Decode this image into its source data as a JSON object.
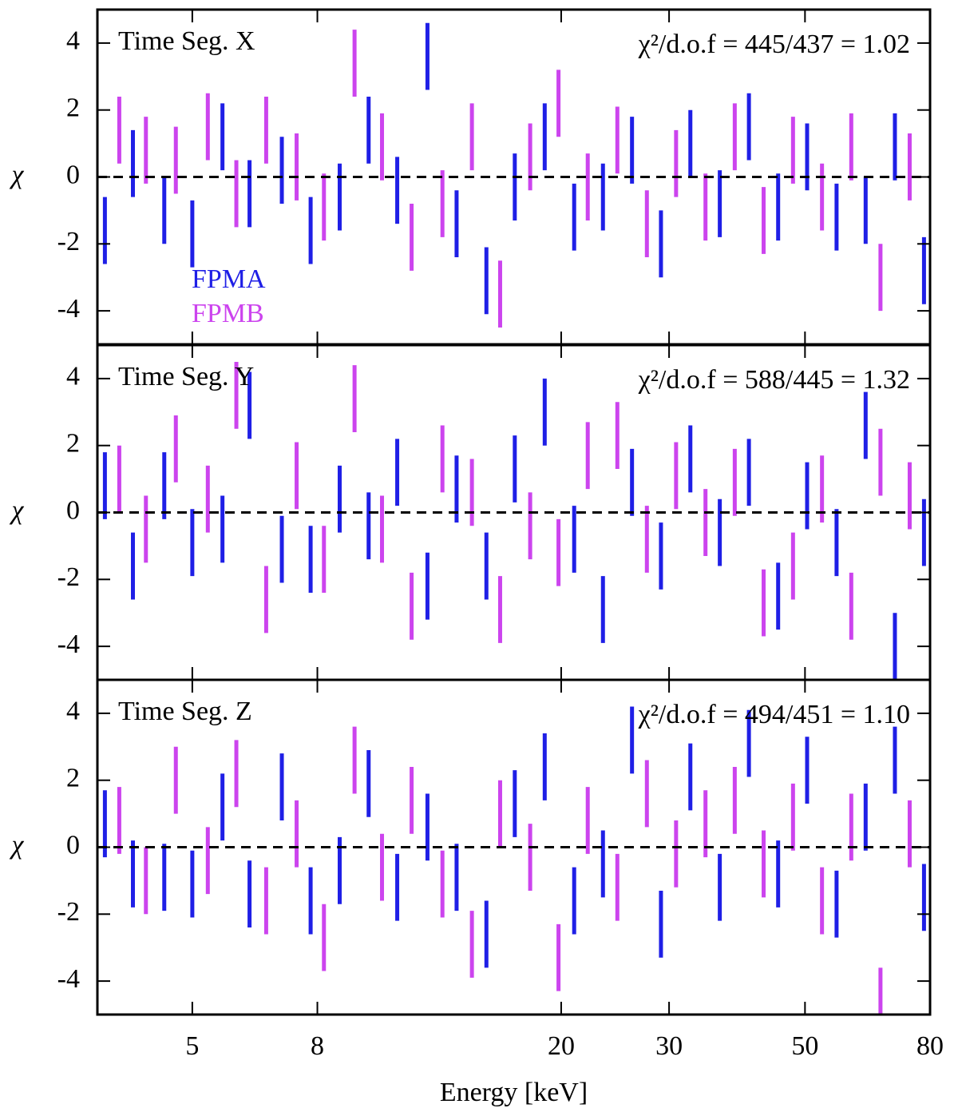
{
  "chart_data": [
    {
      "type": "errorbar",
      "title": "Time Seg. X",
      "annotation": "χ²/d.o.f = 445/437 = 1.02",
      "ylabel": "χ",
      "xlim": [
        3.5,
        80
      ],
      "log_x": true,
      "ylim": [
        -5,
        5
      ],
      "yticks": [
        -4,
        -2,
        0,
        2,
        4
      ],
      "hline": 0,
      "yerr": 1,
      "legend": true,
      "series": [
        {
          "name": "FPMA",
          "color": "#1f1fe6",
          "x": [
            3.6,
            4.0,
            4.5,
            5.0,
            5.6,
            6.2,
            7.0,
            7.8,
            8.7,
            9.7,
            10.8,
            12.1,
            13.5,
            15.1,
            16.8,
            18.8,
            21.0,
            23.4,
            26.1,
            29.1,
            32.5,
            36.3,
            40.5,
            45.2,
            50.4,
            56.3,
            62.8,
            70.1,
            78.2
          ],
          "values": [
            -1.6,
            0.4,
            -1.0,
            -1.7,
            1.2,
            -0.5,
            0.2,
            -1.6,
            -0.6,
            1.4,
            -0.4,
            3.6,
            -1.4,
            -3.1,
            -0.3,
            1.2,
            -1.2,
            -0.6,
            0.8,
            -2.0,
            1.0,
            -0.8,
            1.5,
            -0.9,
            0.6,
            -1.2,
            -1.0,
            0.9,
            -2.8
          ]
        },
        {
          "name": "FPMB",
          "color": "#cc44ee",
          "x": [
            3.8,
            4.2,
            4.7,
            5.3,
            5.9,
            6.6,
            7.4,
            8.2,
            9.2,
            10.2,
            11.4,
            12.8,
            14.3,
            15.9,
            17.8,
            19.8,
            22.1,
            24.7,
            27.6,
            30.8,
            34.4,
            38.4,
            42.8,
            47.8,
            53.3,
            59.5,
            66.4,
            74.1
          ],
          "values": [
            1.4,
            0.8,
            0.5,
            1.5,
            -0.5,
            1.4,
            0.3,
            -0.9,
            3.4,
            0.9,
            -1.8,
            -0.8,
            1.2,
            -3.5,
            0.6,
            2.2,
            -0.3,
            1.1,
            -1.4,
            0.4,
            -0.9,
            1.2,
            -1.3,
            0.8,
            -0.6,
            0.9,
            -3.0,
            0.3
          ]
        }
      ]
    },
    {
      "type": "errorbar",
      "title": "Time Seg. Y",
      "annotation": "χ²/d.o.f = 588/445 = 1.32",
      "ylabel": "χ",
      "xlim": [
        3.5,
        80
      ],
      "log_x": true,
      "ylim": [
        -5,
        5
      ],
      "yticks": [
        -4,
        -2,
        0,
        2,
        4
      ],
      "hline": 0,
      "yerr": 1,
      "series": [
        {
          "color": "#1f1fe6",
          "x": [
            3.6,
            4.0,
            4.5,
            5.0,
            5.6,
            6.2,
            7.0,
            7.8,
            8.7,
            9.7,
            10.8,
            12.1,
            13.5,
            15.1,
            16.8,
            18.8,
            21.0,
            23.4,
            26.1,
            29.1,
            32.5,
            36.3,
            40.5,
            45.2,
            50.4,
            56.3,
            62.8,
            70.1,
            78.2
          ],
          "values": [
            0.8,
            -1.6,
            0.8,
            -0.9,
            -0.5,
            3.2,
            -1.1,
            -1.4,
            0.4,
            -0.4,
            1.2,
            -2.2,
            0.7,
            -1.6,
            1.3,
            3.0,
            -0.8,
            -2.9,
            0.9,
            -1.3,
            1.6,
            -0.6,
            1.2,
            -2.5,
            0.5,
            -0.9,
            2.6,
            -4.0,
            -0.6
          ]
        },
        {
          "color": "#cc44ee",
          "x": [
            3.8,
            4.2,
            4.7,
            5.3,
            5.9,
            6.6,
            7.4,
            8.2,
            9.2,
            10.2,
            11.4,
            12.8,
            14.3,
            15.9,
            17.8,
            19.8,
            22.1,
            24.7,
            27.6,
            30.8,
            34.4,
            38.4,
            42.8,
            47.8,
            53.3,
            59.5,
            66.4,
            74.1
          ],
          "values": [
            1.0,
            -0.5,
            1.9,
            0.4,
            3.5,
            -2.6,
            1.1,
            -1.4,
            3.4,
            -0.5,
            -2.8,
            1.6,
            0.6,
            -2.9,
            -0.4,
            -1.2,
            1.7,
            2.3,
            -0.8,
            1.1,
            -0.3,
            0.9,
            -2.7,
            -1.6,
            0.7,
            -2.8,
            1.5,
            0.5
          ]
        }
      ]
    },
    {
      "type": "errorbar",
      "title": "Time Seg. Z",
      "annotation": "χ²/d.o.f = 494/451 = 1.10",
      "ylabel": "χ",
      "xlabel": "Energy [keV]",
      "xlim": [
        3.5,
        80
      ],
      "log_x": true,
      "xticks": [
        5,
        8,
        20,
        30,
        50,
        80
      ],
      "ylim": [
        -5,
        5
      ],
      "yticks": [
        -4,
        -2,
        0,
        2,
        4
      ],
      "hline": 0,
      "yerr": 1,
      "series": [
        {
          "color": "#1f1fe6",
          "x": [
            3.6,
            4.0,
            4.5,
            5.0,
            5.6,
            6.2,
            7.0,
            7.8,
            8.7,
            9.7,
            10.8,
            12.1,
            13.5,
            15.1,
            16.8,
            18.8,
            21.0,
            23.4,
            26.1,
            29.1,
            32.5,
            36.3,
            40.5,
            45.2,
            50.4,
            56.3,
            62.8,
            70.1,
            78.2
          ],
          "values": [
            0.7,
            -0.8,
            -0.9,
            -1.1,
            1.2,
            -1.4,
            1.8,
            -1.6,
            -0.7,
            1.9,
            -1.2,
            0.6,
            -0.9,
            -2.6,
            1.3,
            2.4,
            -1.6,
            -0.5,
            3.2,
            -2.3,
            2.1,
            -1.2,
            3.1,
            -0.8,
            2.3,
            -1.7,
            0.9,
            2.6,
            -1.5
          ]
        },
        {
          "color": "#cc44ee",
          "x": [
            3.8,
            4.2,
            4.7,
            5.3,
            5.9,
            6.6,
            7.4,
            8.2,
            9.2,
            10.2,
            11.4,
            12.8,
            14.3,
            15.9,
            17.8,
            19.8,
            22.1,
            24.7,
            27.6,
            30.8,
            34.4,
            38.4,
            42.8,
            47.8,
            53.3,
            59.5,
            66.4,
            74.1
          ],
          "values": [
            0.8,
            -1.0,
            2.0,
            -0.4,
            2.2,
            -1.6,
            0.4,
            -2.7,
            2.6,
            -0.6,
            1.4,
            -1.1,
            -2.9,
            1.0,
            -0.3,
            -3.3,
            0.8,
            -1.2,
            1.6,
            -0.2,
            0.7,
            1.4,
            -0.5,
            0.9,
            -1.6,
            0.6,
            -4.6,
            0.4
          ]
        }
      ]
    }
  ]
}
